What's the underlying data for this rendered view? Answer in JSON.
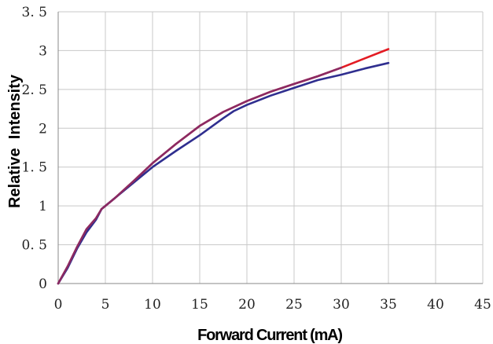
{
  "chart_data": {
    "type": "line",
    "title": "",
    "xlabel": "Forward Current (mA)",
    "ylabel": "Relative  Intensity",
    "xlim": [
      0,
      45
    ],
    "ylim": [
      0,
      3.5
    ],
    "xticks": [
      "0",
      "5",
      "10",
      "15",
      "20",
      "25",
      "30",
      "35",
      "40",
      "45"
    ],
    "yticks": [
      "0",
      "0. 5",
      "1",
      "1. 5",
      "2",
      "2. 5",
      "3",
      "3. 5"
    ],
    "grid": true,
    "legend": "none",
    "series": [
      {
        "color": "#e31b23",
        "x": [
          0,
          1,
          2,
          3,
          4,
          4.6,
          6,
          8,
          10,
          12.5,
          15,
          17.5,
          20,
          22.5,
          25,
          27.5,
          30,
          32.5,
          35
        ],
        "y": [
          0,
          0.22,
          0.47,
          0.7,
          0.84,
          0.96,
          1.1,
          1.32,
          1.55,
          1.8,
          2.03,
          2.21,
          2.35,
          2.47,
          2.57,
          2.67,
          2.78,
          2.9,
          3.02
        ]
      },
      {
        "color": "#2f2e8f",
        "x": [
          0,
          1,
          2,
          3,
          4,
          4.6,
          6,
          8,
          10,
          12.5,
          15,
          17.5,
          18.6,
          20,
          22.5,
          25,
          27.5,
          30,
          32.5,
          35
        ],
        "y": [
          0,
          0.2,
          0.45,
          0.66,
          0.82,
          0.96,
          1.1,
          1.3,
          1.5,
          1.71,
          1.91,
          2.13,
          2.22,
          2.3,
          2.42,
          2.52,
          2.62,
          2.69,
          2.77,
          2.84
        ]
      },
      {
        "color": "#8a2a63",
        "x": [
          0,
          1,
          2,
          3,
          4,
          4.6,
          6,
          8,
          10,
          12.5,
          15,
          17.5,
          20,
          22.5,
          25,
          27.5,
          30
        ],
        "y": [
          0,
          0.22,
          0.47,
          0.7,
          0.84,
          0.96,
          1.1,
          1.32,
          1.55,
          1.8,
          2.03,
          2.21,
          2.35,
          2.47,
          2.57,
          2.67,
          2.78
        ]
      }
    ]
  }
}
